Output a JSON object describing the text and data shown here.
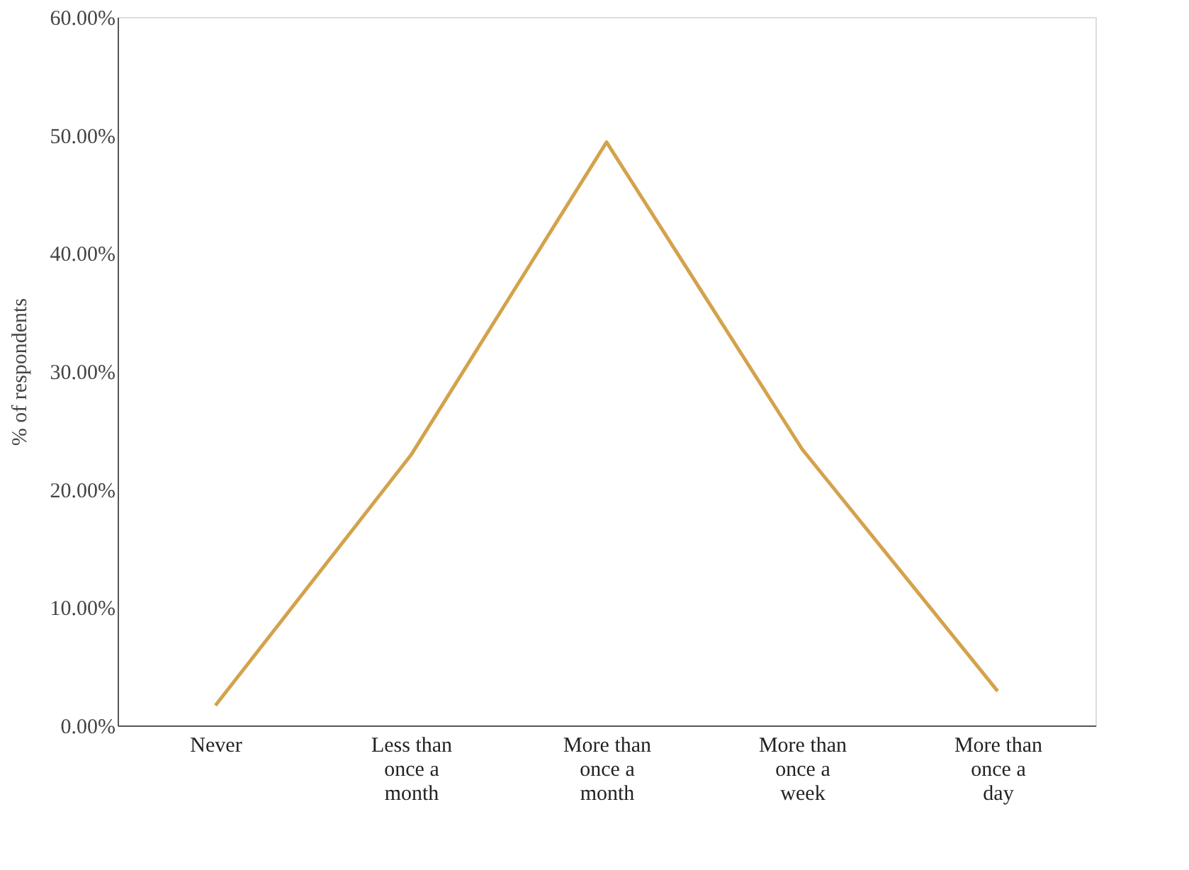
{
  "chart_data": {
    "type": "line",
    "ylabel": "% of respondents",
    "categories": [
      "Never",
      "Less than once a month",
      "More than once a month",
      "More than once a week",
      "More than once a day"
    ],
    "series": [
      {
        "color": "#d4a24c",
        "values": [
          1.7,
          22.9,
          49.4,
          23.4,
          2.9
        ]
      }
    ],
    "ylim": [
      0,
      60
    ],
    "yticks": [
      {
        "value": 0,
        "label": "0.00%"
      },
      {
        "value": 10,
        "label": "10.00%"
      },
      {
        "value": 20,
        "label": "20.00%"
      },
      {
        "value": 30,
        "label": "30.00%"
      },
      {
        "value": 40,
        "label": "40.00%"
      },
      {
        "value": 50,
        "label": "50.00%"
      },
      {
        "value": 60,
        "label": "60.00%"
      }
    ],
    "grid": false,
    "marker": "none",
    "line_style": "solid"
  }
}
